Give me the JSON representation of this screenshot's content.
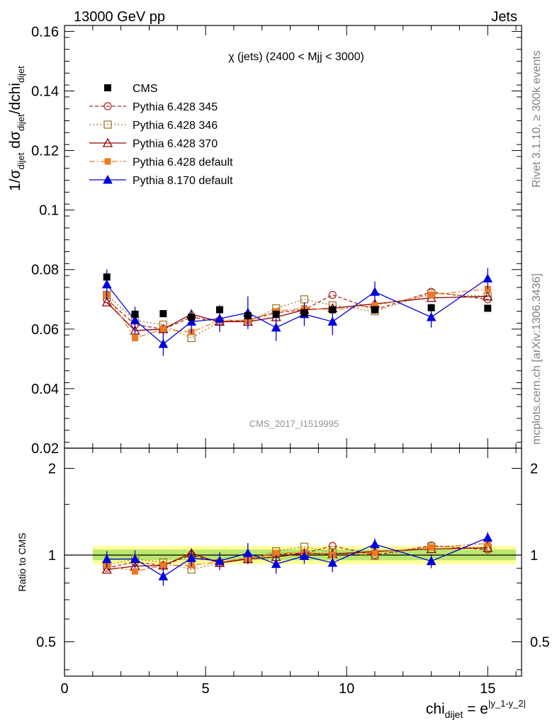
{
  "header": {
    "energy_label": "13000 GeV pp",
    "category_label": "Jets"
  },
  "side_labels": {
    "rivet": "Rivet 3.1.10, ≥ 300k events",
    "mcplots": "mcplots.cern.ch [arXiv:1306.3436]"
  },
  "chart_data": {
    "type": "scatter",
    "title": "χ (jets) (2400 < Mjj < 3000)",
    "watermark": "CMS_2017_I1519995",
    "xlabel_main": "chi",
    "xlabel_sub": "dijet",
    "xlabel_eq": " = e",
    "xlabel_sup": "|y_1-y_2|",
    "ylabel_parts": [
      "1/σ",
      "dijet",
      " dσ",
      "dijet",
      "/dchi",
      "dijet"
    ],
    "xlim": [
      0,
      16.2
    ],
    "main_ylim": [
      0.02,
      0.162
    ],
    "ratio_ylabel": "Ratio to CMS",
    "ratio_ylim": [
      0.38,
      2.35
    ],
    "x_ticks": [
      "0",
      "5",
      "10",
      "15"
    ],
    "main_y_ticks": [
      "0.02",
      "0.04",
      "0.06",
      "0.08",
      "0.1",
      "0.12",
      "0.14",
      "0.16"
    ],
    "ratio_y_ticks": [
      "0.5",
      "1",
      "2"
    ],
    "legend_position": "top-left",
    "x": [
      1.5,
      2.5,
      3.5,
      4.5,
      5.5,
      6.5,
      7.5,
      8.5,
      9.5,
      11,
      13,
      15
    ],
    "cms": [
      0.0775,
      0.065,
      0.0652,
      0.064,
      0.0665,
      0.0645,
      0.065,
      0.0655,
      0.0665,
      0.0665,
      0.0672,
      0.067
    ],
    "series": [
      {
        "name": "Pythia 6.428 345",
        "color": "#b22222",
        "marker": "open-circle",
        "dash": "5,3",
        "values": [
          0.07,
          0.0615,
          0.06,
          0.064,
          0.0625,
          0.063,
          0.0655,
          0.0665,
          0.0715,
          0.0665,
          0.0725,
          0.07
        ]
      },
      {
        "name": "Pythia 6.428 346",
        "color": "#a0782c",
        "marker": "open-square",
        "dash": "2,3",
        "values": [
          0.0715,
          0.063,
          0.0615,
          0.057,
          0.0625,
          0.0625,
          0.067,
          0.07,
          0.068,
          0.066,
          0.072,
          0.071
        ]
      },
      {
        "name": "Pythia 6.428 370",
        "color": "#8b0000",
        "marker": "open-triangle",
        "dash": "",
        "values": [
          0.069,
          0.0595,
          0.06,
          0.065,
          0.0625,
          0.0625,
          0.064,
          0.0665,
          0.067,
          0.0685,
          0.0705,
          0.071
        ]
      },
      {
        "name": "Pythia 6.428 default",
        "color": "#f07820",
        "marker": "filled-square",
        "dash": "8,3,2,3",
        "values": [
          0.0715,
          0.057,
          0.06,
          0.059,
          0.063,
          0.063,
          0.066,
          0.067,
          0.0665,
          0.068,
          0.0715,
          0.0735
        ]
      },
      {
        "name": "Pythia 8.170 default",
        "color": "#0000dd",
        "marker": "filled-triangle",
        "dash": "",
        "values": [
          0.075,
          0.063,
          0.055,
          0.0625,
          0.0635,
          0.0655,
          0.0605,
          0.065,
          0.0625,
          0.0725,
          0.064,
          0.077
        ],
        "errors": [
          0.005,
          0.0045,
          0.004,
          0.004,
          0.0045,
          0.0055,
          0.0045,
          0.004,
          0.0045,
          0.0035,
          0.0035,
          0.0035
        ]
      }
    ]
  }
}
